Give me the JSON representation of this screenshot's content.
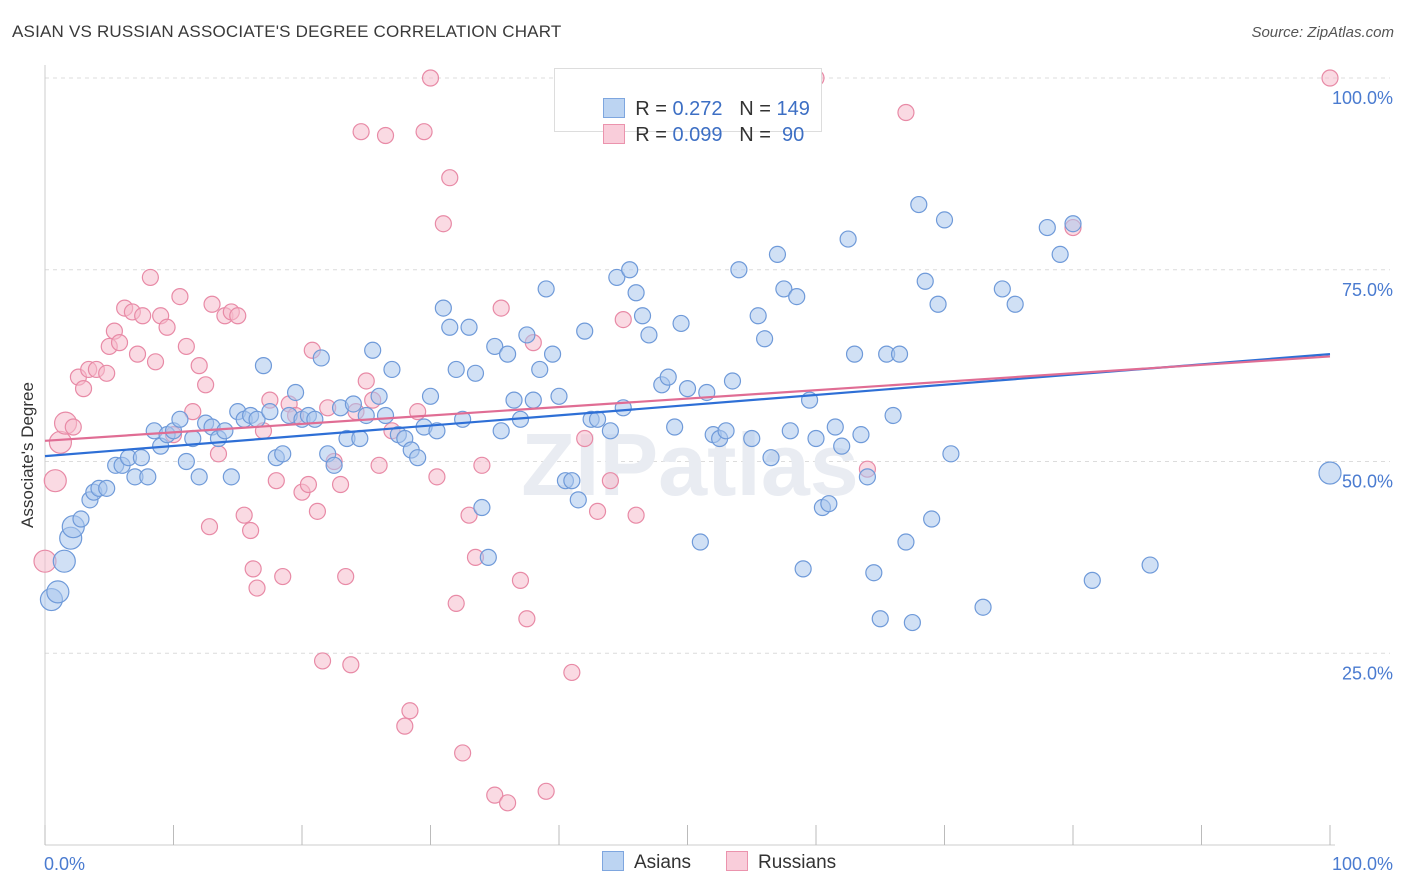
{
  "title": "ASIAN VS RUSSIAN ASSOCIATE'S DEGREE CORRELATION CHART",
  "source": "Source: ZipAtlas.com",
  "watermark": "ZIPatlas",
  "legend": {
    "asians": {
      "r_label": "R = ",
      "r_value": "0.272",
      "n_label": "N = ",
      "n_value": "149"
    },
    "russians": {
      "r_label": "R = ",
      "r_value": "0.099",
      "n_label": "N = ",
      "n_value": " 90"
    }
  },
  "bottom_legend": {
    "asians": "Asians",
    "russians": "Russians"
  },
  "colors": {
    "asians_fill": "#a9c6ec",
    "asians_stroke": "#6f9ad9",
    "asians_line": "#2e6fd6",
    "russians_fill": "#f6bccc",
    "russians_stroke": "#e88aa6",
    "russians_line": "#e06d94",
    "tick_label": "#4a7bd0"
  },
  "chart_data": {
    "type": "scatter",
    "title": "ASIAN VS RUSSIAN ASSOCIATE'S DEGREE CORRELATION CHART",
    "xlabel": "",
    "ylabel": "Associate's Degree",
    "xlim": [
      0,
      100
    ],
    "ylim": [
      0,
      100
    ],
    "x_tick_labels": [
      "0.0%",
      "100.0%"
    ],
    "y_ticks": [
      25,
      50,
      75,
      100
    ],
    "y_tick_labels": [
      "25.0%",
      "50.0%",
      "75.0%",
      "100.0%"
    ],
    "grid": true,
    "series": [
      {
        "name": "Asians",
        "trend": {
          "x": [
            0,
            100
          ],
          "y": [
            50.7,
            64.0
          ]
        },
        "points": [
          [
            0.5,
            32
          ],
          [
            1,
            33
          ],
          [
            1.5,
            37
          ],
          [
            2,
            40
          ],
          [
            2.2,
            41.5
          ],
          [
            2.8,
            42.5
          ],
          [
            3.5,
            45
          ],
          [
            3.8,
            46
          ],
          [
            4.2,
            46.5
          ],
          [
            4.8,
            46.5
          ],
          [
            5.5,
            49.5
          ],
          [
            6,
            49.5
          ],
          [
            6.5,
            50.5
          ],
          [
            7,
            48
          ],
          [
            7.5,
            50.5
          ],
          [
            8,
            48
          ],
          [
            8.5,
            54
          ],
          [
            9,
            52
          ],
          [
            9.5,
            53.5
          ],
          [
            10,
            54
          ],
          [
            10.5,
            55.5
          ],
          [
            11,
            50
          ],
          [
            11.5,
            53
          ],
          [
            12,
            48
          ],
          [
            12.5,
            55
          ],
          [
            13,
            54.5
          ],
          [
            13.5,
            53
          ],
          [
            14,
            54
          ],
          [
            14.5,
            48
          ],
          [
            15,
            56.5
          ],
          [
            15.5,
            55.5
          ],
          [
            16,
            56
          ],
          [
            16.5,
            55.5
          ],
          [
            17,
            62.5
          ],
          [
            17.5,
            56.5
          ],
          [
            18,
            50.5
          ],
          [
            18.5,
            51
          ],
          [
            19,
            56
          ],
          [
            19.5,
            59
          ],
          [
            20,
            55.5
          ],
          [
            20.5,
            56
          ],
          [
            21,
            55.5
          ],
          [
            21.5,
            63.5
          ],
          [
            22,
            51
          ],
          [
            22.5,
            49.5
          ],
          [
            23,
            57
          ],
          [
            23.5,
            53
          ],
          [
            24,
            57.5
          ],
          [
            24.5,
            53
          ],
          [
            25,
            56
          ],
          [
            25.5,
            64.5
          ],
          [
            26,
            58.5
          ],
          [
            26.5,
            56
          ],
          [
            27,
            62
          ],
          [
            27.5,
            53.5
          ],
          [
            28,
            53
          ],
          [
            28.5,
            51.5
          ],
          [
            29,
            50.5
          ],
          [
            29.5,
            54.5
          ],
          [
            30,
            58.5
          ],
          [
            30.5,
            54
          ],
          [
            31,
            70
          ],
          [
            31.5,
            67.5
          ],
          [
            32,
            62
          ],
          [
            32.5,
            55.5
          ],
          [
            33,
            67.5
          ],
          [
            33.5,
            61.5
          ],
          [
            34,
            44
          ],
          [
            34.5,
            37.5
          ],
          [
            35,
            65
          ],
          [
            35.5,
            54
          ],
          [
            36,
            64
          ],
          [
            36.5,
            58
          ],
          [
            37,
            55.5
          ],
          [
            37.5,
            66.5
          ],
          [
            38,
            58
          ],
          [
            38.5,
            62
          ],
          [
            39,
            72.5
          ],
          [
            39.5,
            64
          ],
          [
            40,
            58.5
          ],
          [
            40.5,
            47.5
          ],
          [
            41,
            47.5
          ],
          [
            41.5,
            45
          ],
          [
            42,
            67
          ],
          [
            42.5,
            55.5
          ],
          [
            43,
            55.5
          ],
          [
            44,
            54
          ],
          [
            44.5,
            74
          ],
          [
            45,
            57
          ],
          [
            45.5,
            75
          ],
          [
            46,
            72
          ],
          [
            46.5,
            69
          ],
          [
            47,
            66.5
          ],
          [
            48,
            60
          ],
          [
            48.5,
            61
          ],
          [
            49,
            54.5
          ],
          [
            49.5,
            68
          ],
          [
            50,
            59.5
          ],
          [
            51,
            39.5
          ],
          [
            51.5,
            59
          ],
          [
            52,
            53.5
          ],
          [
            52.5,
            53
          ],
          [
            53,
            54
          ],
          [
            53.5,
            60.5
          ],
          [
            54,
            75
          ],
          [
            55,
            53
          ],
          [
            55.5,
            69
          ],
          [
            56,
            66
          ],
          [
            56.5,
            50.5
          ],
          [
            57,
            77
          ],
          [
            57.5,
            72.5
          ],
          [
            58,
            54
          ],
          [
            58.5,
            71.5
          ],
          [
            59,
            36
          ],
          [
            59.5,
            58
          ],
          [
            60,
            53
          ],
          [
            60.5,
            44
          ],
          [
            61,
            44.5
          ],
          [
            61.5,
            54.5
          ],
          [
            62,
            52
          ],
          [
            62.5,
            79
          ],
          [
            63,
            64
          ],
          [
            63.5,
            53.5
          ],
          [
            64,
            48
          ],
          [
            64.5,
            35.5
          ],
          [
            65,
            29.5
          ],
          [
            65.5,
            64
          ],
          [
            66,
            56
          ],
          [
            66.5,
            64
          ],
          [
            67,
            39.5
          ],
          [
            67.5,
            29
          ],
          [
            68,
            83.5
          ],
          [
            68.5,
            73.5
          ],
          [
            69,
            42.5
          ],
          [
            69.5,
            70.5
          ],
          [
            70,
            81.5
          ],
          [
            70.5,
            51
          ],
          [
            73,
            31
          ],
          [
            74.5,
            72.5
          ],
          [
            75.5,
            70.5
          ],
          [
            78,
            80.5
          ],
          [
            79,
            77
          ],
          [
            80,
            81
          ],
          [
            81.5,
            34.5
          ],
          [
            86,
            36.5
          ],
          [
            100,
            48.5
          ]
        ],
        "sizes_large": [
          [
            0.5,
            32
          ],
          [
            1,
            33
          ],
          [
            1.5,
            37
          ],
          [
            2,
            40
          ],
          [
            2.2,
            41.5
          ],
          [
            100,
            48.5
          ]
        ]
      },
      {
        "name": "Russians",
        "trend": {
          "x": [
            0,
            100
          ],
          "y": [
            52.7,
            63.7
          ]
        },
        "points": [
          [
            0,
            37
          ],
          [
            0.8,
            47.5
          ],
          [
            1.2,
            52.5
          ],
          [
            1.6,
            55
          ],
          [
            2.2,
            54.5
          ],
          [
            2.6,
            61
          ],
          [
            3,
            59.5
          ],
          [
            3.4,
            62
          ],
          [
            4,
            62
          ],
          [
            4.8,
            61.5
          ],
          [
            5,
            65
          ],
          [
            5.4,
            67
          ],
          [
            5.8,
            65.5
          ],
          [
            6.2,
            70
          ],
          [
            6.8,
            69.5
          ],
          [
            7.2,
            64
          ],
          [
            7.6,
            69
          ],
          [
            8.2,
            74
          ],
          [
            8.6,
            63
          ],
          [
            9,
            69
          ],
          [
            9.5,
            67.5
          ],
          [
            10,
            53.5
          ],
          [
            10.5,
            71.5
          ],
          [
            11,
            65
          ],
          [
            11.5,
            56.5
          ],
          [
            12,
            62.5
          ],
          [
            12.5,
            60
          ],
          [
            12.8,
            41.5
          ],
          [
            13,
            70.5
          ],
          [
            13.5,
            51
          ],
          [
            14,
            69
          ],
          [
            14.5,
            69.5
          ],
          [
            15,
            69
          ],
          [
            15.5,
            43
          ],
          [
            16,
            41
          ],
          [
            16.2,
            36
          ],
          [
            16.5,
            33.5
          ],
          [
            17,
            54
          ],
          [
            17.5,
            58
          ],
          [
            18,
            47.5
          ],
          [
            18.5,
            35
          ],
          [
            19,
            57.5
          ],
          [
            19.5,
            56
          ],
          [
            20,
            46
          ],
          [
            20.5,
            47
          ],
          [
            20.8,
            64.5
          ],
          [
            21.2,
            43.5
          ],
          [
            21.6,
            24
          ],
          [
            22,
            57
          ],
          [
            22.5,
            50
          ],
          [
            23,
            47
          ],
          [
            23.4,
            35
          ],
          [
            23.8,
            23.5
          ],
          [
            24.2,
            56.5
          ],
          [
            24.6,
            93
          ],
          [
            25,
            60.5
          ],
          [
            25.5,
            58
          ],
          [
            26,
            49.5
          ],
          [
            26.5,
            92.5
          ],
          [
            27,
            54
          ],
          [
            28,
            15.5
          ],
          [
            28.4,
            17.5
          ],
          [
            29,
            56.5
          ],
          [
            29.5,
            93
          ],
          [
            30,
            100
          ],
          [
            30.5,
            48
          ],
          [
            31,
            81
          ],
          [
            31.5,
            87
          ],
          [
            32,
            31.5
          ],
          [
            32.5,
            12
          ],
          [
            33,
            43
          ],
          [
            33.5,
            37.5
          ],
          [
            34,
            49.5
          ],
          [
            35,
            6.5
          ],
          [
            35.5,
            70
          ],
          [
            36,
            5.5
          ],
          [
            37,
            34.5
          ],
          [
            37.5,
            29.5
          ],
          [
            38,
            65.5
          ],
          [
            39,
            7
          ],
          [
            41,
            22.5
          ],
          [
            42,
            53
          ],
          [
            43,
            43.5
          ],
          [
            44,
            47.5
          ],
          [
            45,
            68.5
          ],
          [
            46,
            43
          ],
          [
            60,
            100
          ],
          [
            64,
            49
          ],
          [
            67,
            95.5
          ],
          [
            80,
            80.5
          ],
          [
            100,
            100
          ]
        ],
        "sizes_large": [
          [
            0,
            37
          ],
          [
            0.8,
            47.5
          ],
          [
            1.2,
            52.5
          ],
          [
            1.6,
            55
          ]
        ]
      }
    ]
  }
}
